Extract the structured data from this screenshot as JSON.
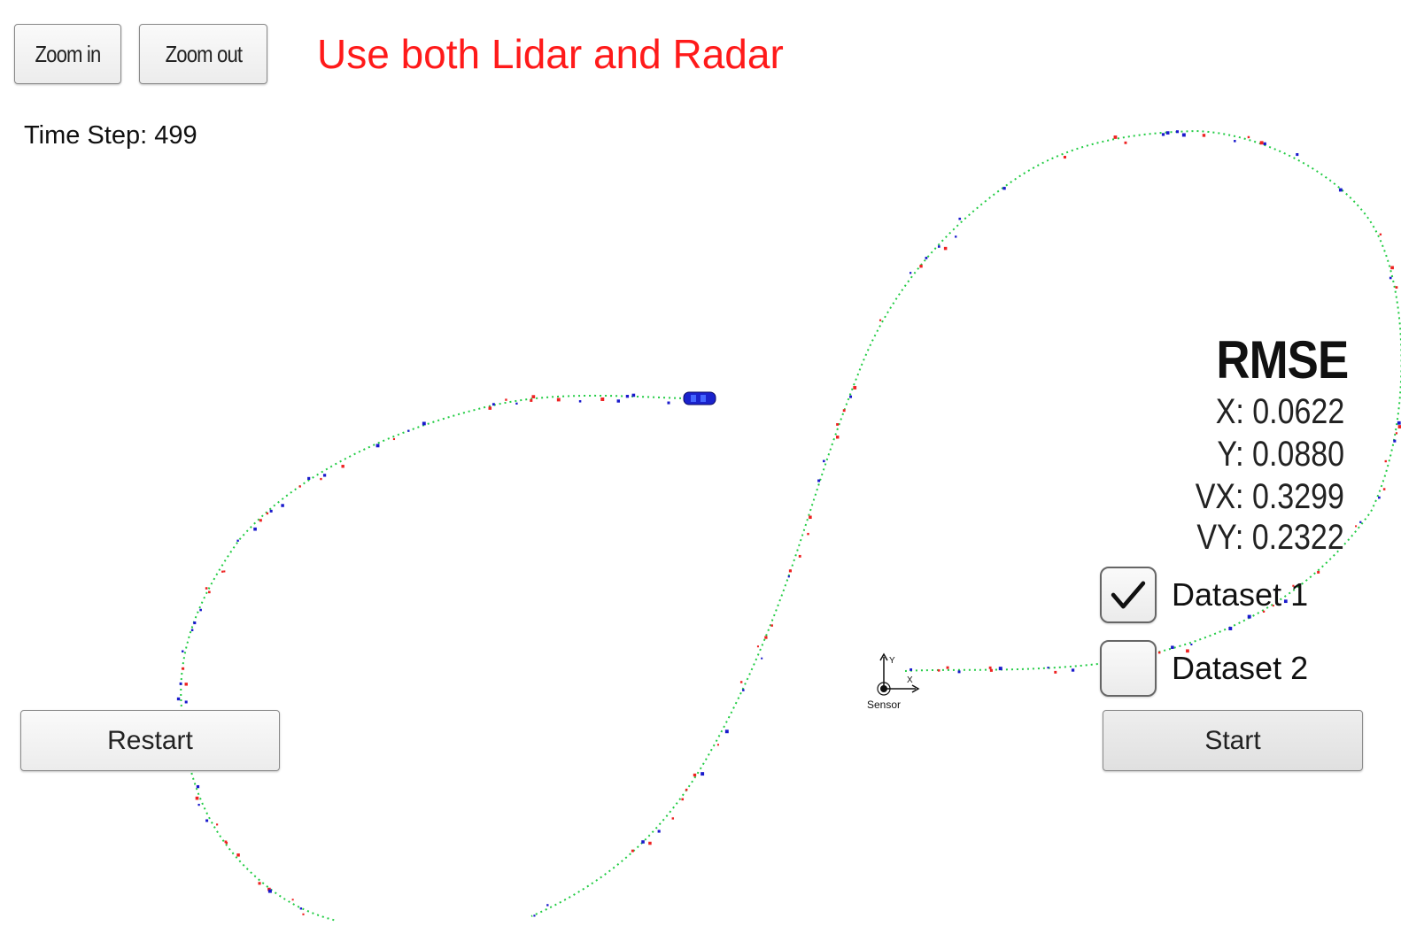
{
  "toolbar": {
    "zoom_in_label": "Zoom in",
    "zoom_out_label": "Zoom out"
  },
  "headline": "Use both Lidar and Radar",
  "time_step": "Time Step: 499",
  "rmse": {
    "title": "RMSE",
    "x": "X: 0.0622",
    "y": "Y: 0.0880",
    "vx": "VX: 0.3299",
    "vy": "VY: 0.2322"
  },
  "datasets": [
    {
      "label": "Dataset 1",
      "checked": true
    },
    {
      "label": "Dataset 2",
      "checked": false
    }
  ],
  "buttons": {
    "restart_label": "Restart",
    "start_label": "Start"
  },
  "sensor": {
    "label": "Sensor",
    "axis_y": "Y",
    "axis_x": "X"
  },
  "colors": {
    "headline": "#ff1a1a",
    "estimate_track": "#22cc44",
    "lidar_marker": "#ee2222",
    "radar_marker": "#1a1acc",
    "car": "#1a22cc"
  },
  "icons": {
    "check": "check-icon",
    "car": "car-icon",
    "sensor": "sensor-icon"
  }
}
